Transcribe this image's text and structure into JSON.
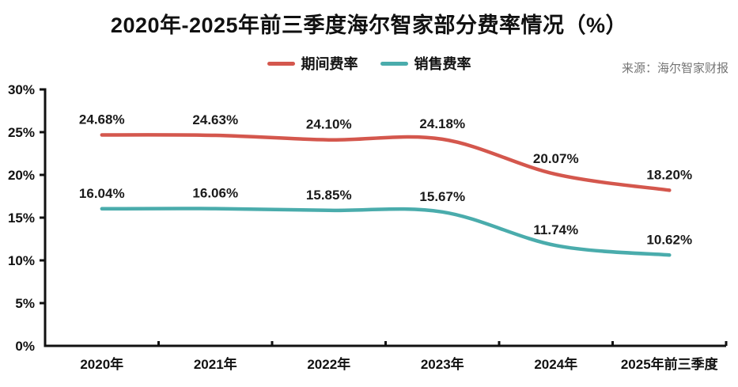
{
  "title": "2020年-2025年前三季度海尔智家部分费率情况（%）",
  "source": "来源：海尔智家财报",
  "chart_data": {
    "type": "line",
    "title": "2020年-2025年前三季度海尔智家部分费率情况（%）",
    "source": "来源：海尔智家财报",
    "categories": [
      "2020年",
      "2021年",
      "2022年",
      "2023年",
      "2024年",
      "2025年前三季度"
    ],
    "series": [
      {
        "name": "期间费率",
        "color": "#d4574d",
        "values": [
          24.68,
          24.63,
          24.1,
          24.18,
          20.07,
          18.2
        ],
        "point_labels": [
          "24.68%",
          "24.63%",
          "24.10%",
          "24.18%",
          "20.07%",
          "18.20%"
        ]
      },
      {
        "name": "销售费率",
        "color": "#4aacac",
        "values": [
          16.04,
          16.06,
          15.85,
          15.67,
          11.74,
          10.62
        ],
        "point_labels": [
          "16.04%",
          "16.06%",
          "15.85%",
          "15.67%",
          "11.74%",
          "10.62%"
        ]
      }
    ],
    "y_axis": {
      "min": 0,
      "max": 30,
      "tick_values": [
        0,
        5,
        10,
        15,
        20,
        25,
        30
      ],
      "tick_labels": [
        "0%",
        "5%",
        "10%",
        "15%",
        "20%",
        "25%",
        "30%"
      ]
    },
    "smooth": true,
    "legend_position": "top",
    "grid": false,
    "axis_color": "#111111",
    "label_color": "#1a1a1a",
    "source_color": "#757575"
  }
}
